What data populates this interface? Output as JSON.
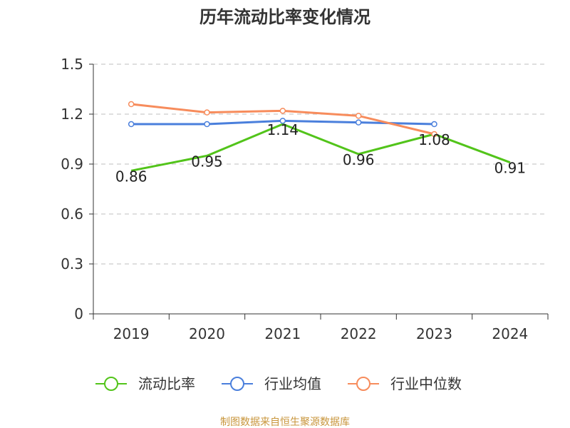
{
  "chart_data": {
    "type": "line",
    "title": "历年流动比率变化情况",
    "categories": [
      "2019",
      "2020",
      "2021",
      "2022",
      "2023",
      "2024"
    ],
    "ylim": [
      0,
      1.5
    ],
    "yticks": [
      0,
      0.3,
      0.6,
      0.9,
      1.2,
      1.5
    ],
    "ytick_labels": [
      "0",
      "0.3",
      "0.6",
      "0.9",
      "1.2",
      "1.5"
    ],
    "grid": true,
    "legend_position": "bottom",
    "series": [
      {
        "name": "流动比率",
        "color": "#52c41a",
        "values": [
          0.86,
          0.95,
          1.14,
          0.96,
          1.08,
          0.91
        ],
        "labels": [
          "0.86",
          "0.95",
          "1.14",
          "0.96",
          "1.08",
          "0.91"
        ]
      },
      {
        "name": "行业均值",
        "color": "#4a7fdc",
        "values": [
          1.14,
          1.14,
          1.16,
          1.15,
          1.14,
          null
        ]
      },
      {
        "name": "行业中位数",
        "color": "#f78c5c",
        "values": [
          1.26,
          1.21,
          1.22,
          1.19,
          1.08,
          null
        ]
      }
    ],
    "source": "制图数据来自恒生聚源数据库"
  }
}
